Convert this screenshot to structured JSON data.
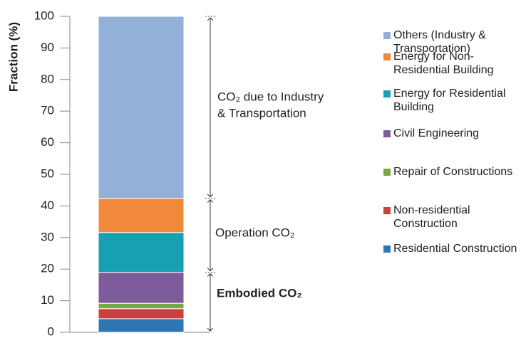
{
  "chart_data": {
    "type": "stacked-bar",
    "y_label": "Fraction (%)",
    "ylim": [
      0,
      100
    ],
    "yticks": [
      0,
      10,
      20,
      30,
      40,
      50,
      60,
      70,
      80,
      90,
      100
    ],
    "series": [
      {
        "name": "Residential Construction",
        "color": "#2e75b6",
        "values": [
          4.3
        ]
      },
      {
        "name": "Non-residential Construction",
        "color": "#c8413f",
        "values": [
          3.2
        ]
      },
      {
        "name": "Repair of Constructions",
        "color": "#77a845",
        "values": [
          1.7
        ]
      },
      {
        "name": "Civil Engineering",
        "color": "#7e5c9c",
        "values": [
          9.8
        ]
      },
      {
        "name": "Energy for Residential Building",
        "color": "#17a0b2",
        "values": [
          12.6
        ]
      },
      {
        "name": "Energy for Non-Residential Building",
        "color": "#f08a3a",
        "values": [
          10.8
        ]
      },
      {
        "name": "Others (Industry & Transportation)",
        "color": "#93b1d8",
        "values": [
          57.6
        ]
      }
    ],
    "annotations": [
      {
        "lines": [
          "CO₂ due to Industry",
          " & Transportation"
        ],
        "bold": false
      },
      {
        "lines": [
          "Operation CO₂"
        ],
        "bold": false
      },
      {
        "lines": [
          "Embodied CO₂"
        ],
        "bold": true
      }
    ]
  }
}
